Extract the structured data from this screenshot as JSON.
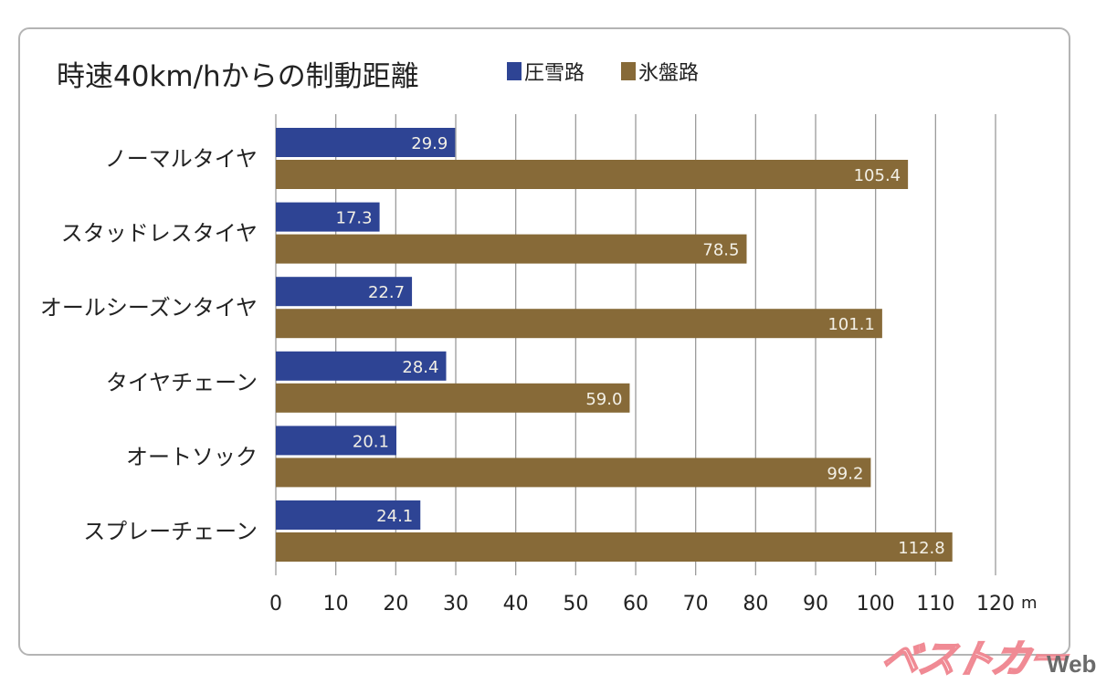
{
  "chart_data": {
    "type": "bar",
    "orientation": "horizontal",
    "title": "時速40km/hからの制動距離",
    "categories": [
      "ノーマルタイヤ",
      "スタッドレスタイヤ",
      "オールシーズンタイヤ",
      "タイヤチェーン",
      "オートソック",
      "スプレーチェーン"
    ],
    "series": [
      {
        "name": "圧雪路",
        "color": "#2e4494",
        "values": [
          29.9,
          17.3,
          22.7,
          28.4,
          20.1,
          24.1
        ],
        "labels": [
          "29.9",
          "17.3",
          "22.7",
          "28.4",
          "20.1",
          "24.1"
        ]
      },
      {
        "name": "氷盤路",
        "color": "#876a38",
        "values": [
          105.4,
          78.5,
          101.1,
          59.0,
          99.2,
          112.8
        ],
        "labels": [
          "105.4",
          "78.5",
          "101.1",
          "59.0",
          "99.2",
          "112.8"
        ]
      }
    ],
    "xlabel": "",
    "ylabel": "",
    "x_unit": "m",
    "xlim": [
      0,
      120
    ],
    "x_ticks": [
      0,
      10,
      20,
      30,
      40,
      50,
      60,
      70,
      80,
      90,
      100,
      110,
      120
    ],
    "x_tick_labels": [
      "0",
      "10",
      "20",
      "30",
      "40",
      "50",
      "60",
      "70",
      "80",
      "90",
      "100",
      "110",
      "120"
    ],
    "grid": true,
    "legend_position": "top, right of title"
  },
  "legend": {
    "items": [
      {
        "label": "圧雪路",
        "color": "#2e4494"
      },
      {
        "label": "氷盤路",
        "color": "#876a38"
      }
    ]
  },
  "watermark": {
    "brand": "ベストカー",
    "suffix": "Web"
  }
}
